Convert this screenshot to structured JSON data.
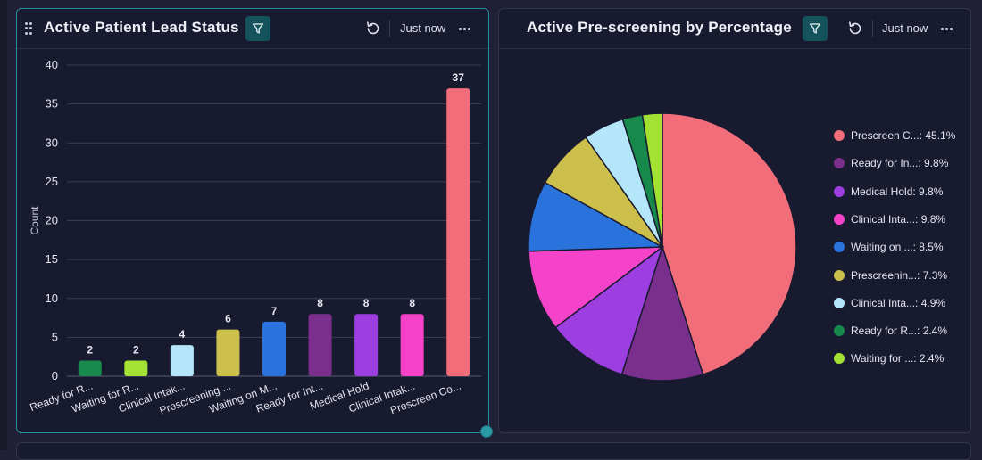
{
  "bar_panel": {
    "title": "Active Patient Lead Status",
    "timestamp": "Just now"
  },
  "pie_panel": {
    "title": "Active Pre-screening by Percentage",
    "timestamp": "Just now"
  },
  "chart_data": [
    {
      "type": "bar",
      "title": "Active Patient Lead Status",
      "xlabel": "",
      "ylabel": "Count",
      "ylim": [
        0,
        40
      ],
      "yticks": [
        0,
        5,
        10,
        15,
        20,
        25,
        30,
        35,
        40
      ],
      "grid": true,
      "categories": [
        "Ready for R...",
        "Waiting for R...",
        "Clinical Intak...",
        "Prescreening ...",
        "Waiting on M...",
        "Ready for Int...",
        "Medical Hold",
        "Clinical Intak...",
        "Prescreen Co..."
      ],
      "values": [
        2,
        2,
        4,
        6,
        7,
        8,
        8,
        8,
        37
      ],
      "colors": [
        "#17894a",
        "#a3e233",
        "#b3e6f8",
        "#ccbf4c",
        "#2a72dc",
        "#7a2f8c",
        "#9c3ee0",
        "#f442c9",
        "#f26d7a"
      ]
    },
    {
      "type": "pie",
      "title": "Active Pre-screening by Percentage",
      "legend_position": "right",
      "labels": [
        "Prescreen C...",
        "Ready for In...",
        "Medical Hold",
        "Clinical Inta...",
        "Waiting on ...",
        "Prescreenin...",
        "Clinical Inta...",
        "Ready for R...",
        "Waiting for ..."
      ],
      "values": [
        45.1,
        9.8,
        9.8,
        9.8,
        8.5,
        7.3,
        4.9,
        2.4,
        2.4
      ],
      "legend_text": [
        "Prescreen C...: 45.1%",
        "Ready for In...: 9.8%",
        "Medical Hold: 9.8%",
        "Clinical Inta...: 9.8%",
        "Waiting on ...: 8.5%",
        "Prescreenin...: 7.3%",
        "Clinical Inta...: 4.9%",
        "Ready for R...: 2.4%",
        "Waiting for ...: 2.4%"
      ],
      "colors": [
        "#f26d7a",
        "#7a2f8c",
        "#9c3ee0",
        "#f442c9",
        "#2a72dc",
        "#ccbf4c",
        "#b3e6f8",
        "#17894a",
        "#a3e233"
      ]
    }
  ]
}
